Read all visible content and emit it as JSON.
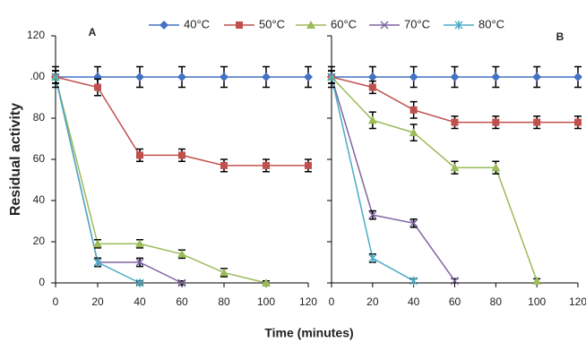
{
  "chart_data": [
    {
      "type": "line",
      "panel": "A",
      "ylabel": "Residual activity",
      "xlabel": "Time (minutes)",
      "x": [
        0,
        20,
        40,
        60,
        80,
        100,
        120
      ],
      "xlim": [
        0,
        120
      ],
      "xticks": [
        0,
        20,
        40,
        60,
        80,
        100,
        120
      ],
      "ylim": [
        0,
        120
      ],
      "yticks": [
        0,
        20,
        40,
        60,
        80,
        {
          "value": 100,
          "label": ".00"
        },
        120
      ],
      "series": [
        {
          "name": "40°C",
          "color": "#4472c4",
          "marker": "diamond",
          "values": [
            100,
            100,
            100,
            100,
            100,
            100,
            100
          ],
          "errors": [
            5,
            5,
            5,
            5,
            5,
            5,
            5
          ]
        },
        {
          "name": "50°C",
          "color": "#c0504d",
          "marker": "square",
          "values": [
            100,
            95,
            62,
            62,
            57,
            57,
            57
          ],
          "errors": [
            3,
            4,
            3,
            3,
            3,
            3,
            3
          ]
        },
        {
          "name": "60°C",
          "color": "#9bbb59",
          "marker": "triangle",
          "values": [
            100,
            19,
            19,
            14,
            5,
            0,
            null
          ],
          "errors": [
            3,
            2,
            2,
            2,
            2,
            1,
            null
          ]
        },
        {
          "name": "70°C",
          "color": "#8064a2",
          "marker": "x",
          "values": [
            100,
            10,
            10,
            0,
            null,
            null,
            null
          ],
          "errors": [
            3,
            2,
            2,
            1,
            null,
            null,
            null
          ]
        },
        {
          "name": "80°C",
          "color": "#4bacc6",
          "marker": "star",
          "values": [
            100,
            10,
            0,
            null,
            null,
            null,
            null
          ],
          "errors": [
            3,
            2,
            1,
            null,
            null,
            null,
            null
          ]
        }
      ]
    },
    {
      "type": "line",
      "panel": "B",
      "x": [
        0,
        20,
        40,
        60,
        80,
        100,
        120
      ],
      "xlim": [
        0,
        120
      ],
      "xticks": [
        0,
        20,
        40,
        60,
        80,
        100,
        120
      ],
      "ylim": [
        0,
        120
      ],
      "yticks": [
        0,
        20,
        40,
        60,
        80,
        100,
        120
      ],
      "series": [
        {
          "color": "#4472c4",
          "marker": "diamond",
          "values": [
            100,
            100,
            100,
            100,
            100,
            100,
            100
          ],
          "errors": [
            5,
            5,
            5,
            5,
            5,
            5,
            5
          ]
        },
        {
          "color": "#c0504d",
          "marker": "square",
          "values": [
            100,
            95,
            84,
            78,
            78,
            78,
            78
          ],
          "errors": [
            3,
            3,
            4,
            3,
            3,
            3,
            3
          ]
        },
        {
          "color": "#9bbb59",
          "marker": "triangle",
          "values": [
            100,
            79,
            73,
            56,
            56,
            1,
            null
          ],
          "errors": [
            3,
            4,
            4,
            3,
            3,
            1,
            null
          ]
        },
        {
          "color": "#8064a2",
          "marker": "x",
          "values": [
            100,
            33,
            29,
            1,
            null,
            null,
            null
          ],
          "errors": [
            3,
            2,
            2,
            1,
            null,
            null,
            null
          ]
        },
        {
          "color": "#4bacc6",
          "marker": "star",
          "values": [
            100,
            12,
            1,
            null,
            null,
            null,
            null
          ],
          "errors": [
            3,
            2,
            1,
            null,
            null,
            null,
            null
          ]
        }
      ]
    }
  ]
}
